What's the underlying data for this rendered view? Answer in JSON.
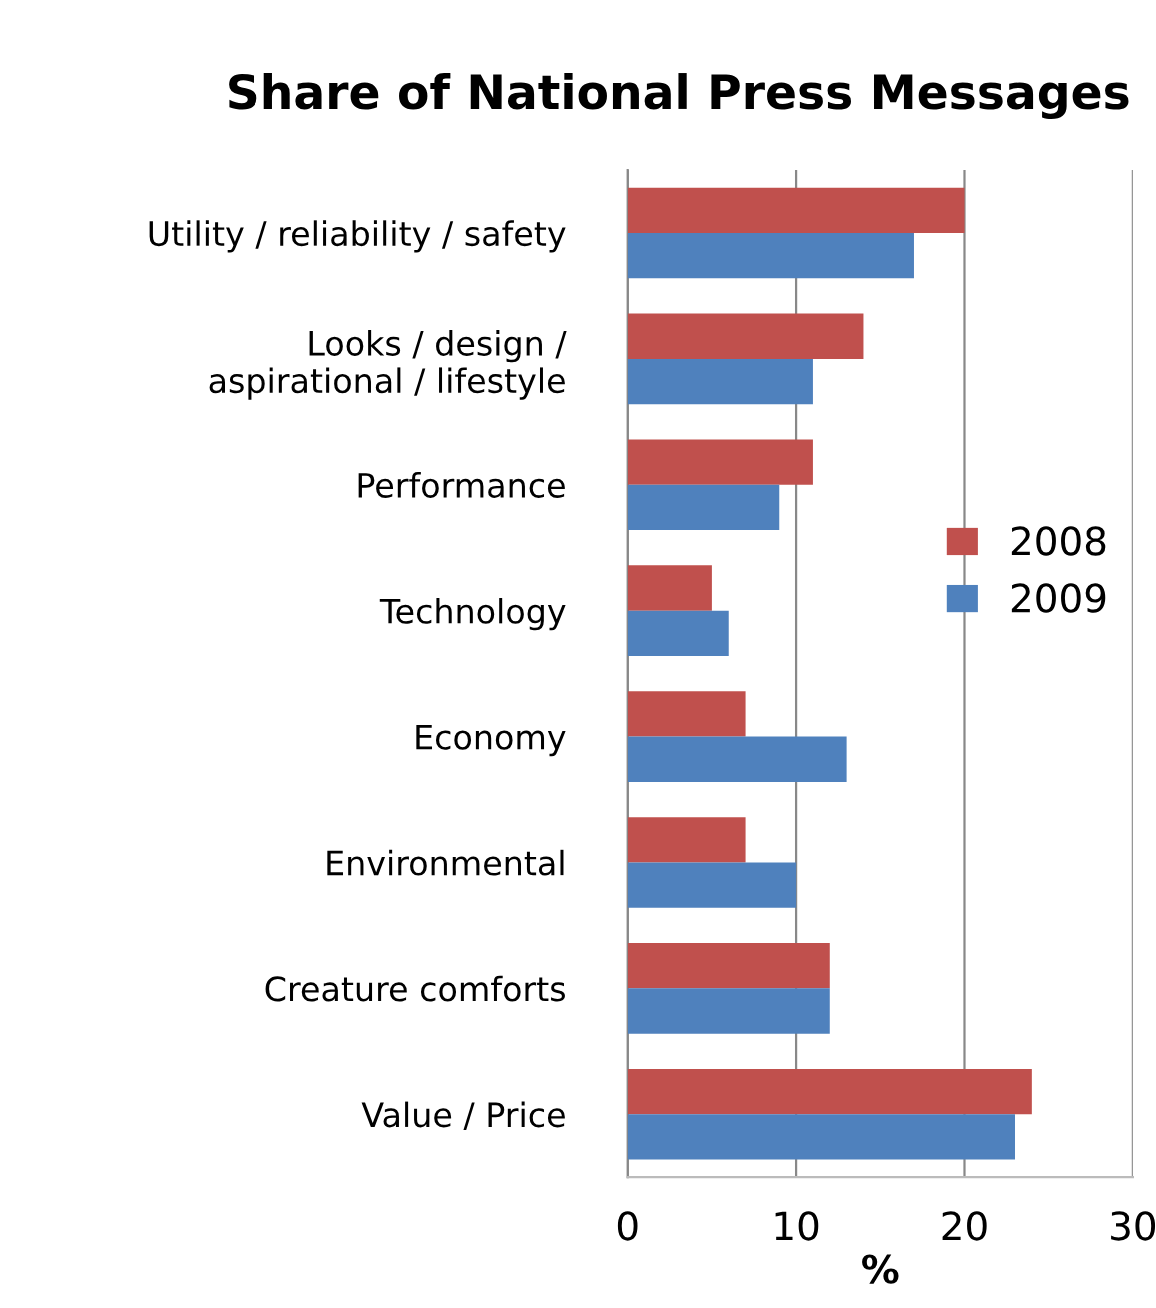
{
  "chart_data": {
    "type": "bar",
    "orientation": "horizontal",
    "title": "Share of National Press Messages",
    "xlabel": "%",
    "categories": [
      "Utility / reliability / safety",
      "Looks / design /\naspirational / lifestyle",
      "Performance",
      "Technology",
      "Economy",
      "Environmental",
      "Creature comforts",
      "Value / Price"
    ],
    "series": [
      {
        "name": "2008",
        "color": "#c0504d",
        "values": [
          20,
          14,
          11,
          5,
          7,
          7,
          12,
          24
        ]
      },
      {
        "name": "2009",
        "color": "#4f81bd",
        "values": [
          17,
          11,
          9,
          6,
          13,
          10,
          12,
          23
        ]
      }
    ],
    "xlim": [
      0,
      30
    ],
    "xticks": [
      0,
      10,
      20,
      30
    ],
    "grid": "x",
    "legend": "right"
  }
}
